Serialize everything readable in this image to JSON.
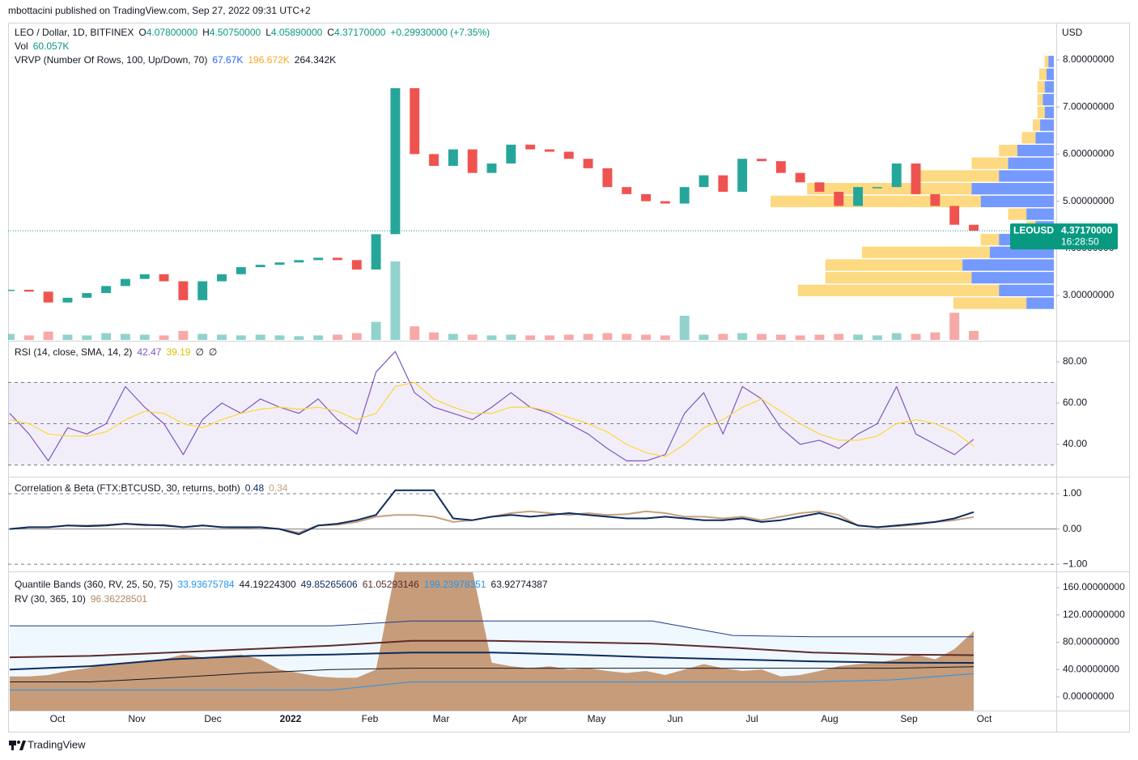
{
  "header": {
    "publisher": "mbottacini published on TradingView.com, Sep 27, 2022 09:31 UTC+2"
  },
  "footer": {
    "brand": "TradingView"
  },
  "x_labels": [
    "Oct",
    "Nov",
    "Dec",
    "2022",
    "Feb",
    "Mar",
    "Apr",
    "May",
    "Jun",
    "Jul",
    "Aug",
    "Sep",
    "Oct"
  ],
  "chart_data": [
    {
      "type": "candlestick",
      "title": "LEO / Dollar, 1D, BITFINEX",
      "ohlc": [
        {
          "label": "O",
          "value": "4.07800000"
        },
        {
          "label": "H",
          "value": "4.50750000"
        },
        {
          "label": "L",
          "value": "4.05890000"
        },
        {
          "label": "C",
          "value": "4.37170000"
        }
      ],
      "change": "+0.29930000 (+7.35%)",
      "currency": "USD",
      "ylim": [
        2.055,
        8.79
      ],
      "yticks": [
        {
          "value": 3,
          "label": "3.00000000"
        },
        {
          "value": 4,
          "label": "4.00000000"
        },
        {
          "value": 5,
          "label": "5.00000000"
        },
        {
          "value": 6,
          "label": "6.00000000"
        },
        {
          "value": 7,
          "label": "7.00000000"
        },
        {
          "value": 8,
          "label": "8.00000000"
        }
      ],
      "series": [
        {
          "name": "LEOUSD",
          "up_color": "#26a69a",
          "down_color": "#ef5350",
          "values": [
            3.12,
            3.08,
            2.85,
            2.95,
            3.05,
            3.2,
            3.35,
            3.45,
            3.3,
            2.9,
            3.3,
            3.45,
            3.6,
            3.65,
            3.7,
            3.75,
            3.8,
            3.75,
            3.55,
            4.3,
            7.4,
            6.0,
            5.75,
            6.1,
            5.6,
            5.8,
            6.2,
            6.1,
            6.05,
            5.9,
            5.7,
            5.3,
            5.15,
            5.0,
            4.95,
            5.3,
            5.55,
            5.2,
            5.9,
            5.85,
            5.6,
            5.4,
            5.2,
            4.9,
            5.3,
            5.3,
            5.8,
            5.15,
            4.9,
            4.5,
            4.3717
          ]
        }
      ],
      "last_price": {
        "value": 4.3717,
        "label": "4.37170000"
      },
      "last_color": "#089981",
      "countdown": "16:28:50",
      "volume": {
        "name": "Vol",
        "value_label": "60.057K",
        "values": [
          40,
          30,
          55,
          35,
          30,
          45,
          40,
          35,
          30,
          60,
          40,
          35,
          30,
          35,
          30,
          25,
          30,
          35,
          45,
          120,
          520,
          90,
          50,
          40,
          35,
          30,
          35,
          30,
          30,
          35,
          40,
          45,
          40,
          35,
          30,
          160,
          35,
          40,
          45,
          40,
          35,
          30,
          35,
          40,
          35,
          30,
          45,
          40,
          50,
          180,
          60.057
        ]
      },
      "profile": {
        "title": "VRVP (Number Of Rows, 100, Up/Down, 70)",
        "legend": [
          {
            "text": "67.67K",
            "color": "#2962ff"
          },
          {
            "text": "196.672K",
            "color": "#f9a825"
          },
          {
            "text": "264.342K",
            "color": "#131722"
          }
        ],
        "up_color": "rgba(41,98,255,0.65)",
        "down_color": "rgba(251,192,45,0.6)",
        "price": [
          2.7,
          2.97,
          3.24,
          3.51,
          3.78,
          4.05,
          4.32,
          4.59,
          4.86,
          5.13,
          5.4,
          5.67,
          5.94,
          6.21,
          6.48,
          6.75,
          7.02,
          7.29,
          7.56,
          7.83
        ],
        "up": [
          30,
          60,
          90,
          100,
          70,
          60,
          20,
          30,
          80,
          90,
          60,
          50,
          40,
          20,
          15,
          10,
          12,
          10,
          8,
          6
        ],
        "down": [
          80,
          220,
          160,
          150,
          140,
          20,
          10,
          20,
          230,
          180,
          90,
          40,
          20,
          15,
          8,
          8,
          6,
          8,
          8,
          4
        ]
      }
    },
    {
      "type": "line",
      "title": "RSI (14, close, SMA, 14, 2)",
      "legend_values": [
        {
          "text": "42.47",
          "color": "#7e57c2"
        },
        {
          "text": "39.19",
          "color": "#e0c200"
        },
        {
          "text": "∅",
          "color": "#131722"
        },
        {
          "text": "∅",
          "color": "#131722"
        }
      ],
      "ylim": [
        24.7,
        89.8
      ],
      "yticks": [
        {
          "value": 40,
          "label": "40.00"
        },
        {
          "value": 60,
          "label": "60.00"
        },
        {
          "value": 80,
          "label": "80.00"
        }
      ],
      "levels": [
        70,
        50,
        30
      ],
      "band": [
        30,
        70
      ],
      "band_color": "rgba(126,87,194,0.1)",
      "series": [
        {
          "name": "RSI",
          "color": "#7e57c2",
          "values": [
            55,
            45,
            32,
            48,
            45,
            50,
            68,
            58,
            50,
            35,
            52,
            60,
            55,
            62,
            58,
            55,
            62,
            52,
            45,
            75,
            85,
            65,
            58,
            55,
            52,
            58,
            65,
            58,
            55,
            50,
            45,
            38,
            32,
            32,
            35,
            55,
            65,
            45,
            68,
            62,
            48,
            40,
            42,
            38,
            45,
            50,
            68,
            45,
            40,
            35,
            42.47
          ]
        },
        {
          "name": "SMA",
          "color": "#fdd835",
          "values": [
            52,
            50,
            45,
            44,
            44,
            46,
            52,
            56,
            55,
            50,
            48,
            52,
            55,
            57,
            58,
            57,
            58,
            56,
            52,
            55,
            68,
            70,
            62,
            58,
            55,
            55,
            58,
            58,
            56,
            53,
            50,
            46,
            40,
            36,
            34,
            40,
            48,
            52,
            58,
            62,
            56,
            50,
            45,
            42,
            42,
            44,
            50,
            52,
            50,
            46,
            39.19
          ]
        }
      ]
    },
    {
      "type": "line",
      "title": "Correlation & Beta (FTX:BTCUSD, 30, returns, both)",
      "legend_values": [
        {
          "text": "0.48",
          "color": "#0d2b5e"
        },
        {
          "text": "0.34",
          "color": "#c4a27f"
        }
      ],
      "ylim": [
        -1.18,
        1.46
      ],
      "yticks": [
        {
          "value": -1,
          "label": "−1.00"
        },
        {
          "value": 0,
          "label": "0.00"
        },
        {
          "value": 1,
          "label": "1.00"
        }
      ],
      "levels": [
        1,
        -1
      ],
      "zero_line": 0,
      "series": [
        {
          "name": "Beta",
          "color": "#c4a27f",
          "width": 2,
          "values": [
            0,
            0.05,
            0.05,
            0.1,
            0.1,
            0.12,
            0.15,
            0.1,
            0.12,
            0.05,
            0.1,
            0.05,
            0.02,
            0.05,
            0.0,
            -0.1,
            0.1,
            0.12,
            0.2,
            0.35,
            0.4,
            0.4,
            0.35,
            0.2,
            0.25,
            0.35,
            0.45,
            0.5,
            0.45,
            0.4,
            0.45,
            0.4,
            0.42,
            0.5,
            0.45,
            0.35,
            0.35,
            0.3,
            0.35,
            0.25,
            0.35,
            0.45,
            0.5,
            0.4,
            0.1,
            0.05,
            0.08,
            0.12,
            0.2,
            0.25,
            0.34
          ]
        },
        {
          "name": "Correlation",
          "color": "#0d2b5e",
          "width": 2,
          "values": [
            0,
            0.05,
            0.05,
            0.1,
            0.08,
            0.1,
            0.15,
            0.12,
            0.1,
            0.05,
            0.1,
            0.05,
            0.05,
            0.05,
            0.0,
            -0.15,
            0.1,
            0.15,
            0.25,
            0.4,
            1.1,
            1.1,
            1.1,
            0.3,
            0.25,
            0.35,
            0.4,
            0.35,
            0.4,
            0.45,
            0.4,
            0.35,
            0.3,
            0.3,
            0.35,
            0.3,
            0.25,
            0.25,
            0.3,
            0.2,
            0.25,
            0.35,
            0.45,
            0.3,
            0.1,
            0.05,
            0.1,
            0.15,
            0.2,
            0.3,
            0.48
          ]
        }
      ]
    },
    {
      "type": "area",
      "title": "Quantile Bands (360, RV, 25, 50, 75)",
      "subtitle": "RV (30, 365, 10)",
      "legend_values": [
        {
          "text": "33.93675784",
          "color": "#2196f3"
        },
        {
          "text": "44.19224300",
          "color": "#131722"
        },
        {
          "text": "49.85265606",
          "color": "#0d2b5e"
        },
        {
          "text": "61.05293146",
          "color": "#5d2b2b"
        },
        {
          "text": "199.23978351",
          "color": "#2196f3"
        },
        {
          "text": "63.92774387",
          "color": "#131722"
        }
      ],
      "rv_value": {
        "text": "96.36228501",
        "color": "#b08968"
      },
      "ylim": [
        -20.1,
        182.5
      ],
      "yticks": [
        {
          "value": 0,
          "label": "0.00000000"
        },
        {
          "value": 40,
          "label": "40.00000000"
        },
        {
          "value": 80,
          "label": "80.00000000"
        },
        {
          "value": 120,
          "label": "120.00000000"
        },
        {
          "value": 160,
          "label": "160.00000000"
        }
      ],
      "area": {
        "name": "RV",
        "color": "#c69c7a",
        "values": [
          30,
          30,
          32,
          38,
          42,
          48,
          50,
          52,
          55,
          62,
          58,
          60,
          62,
          55,
          40,
          35,
          30,
          28,
          28,
          40,
          185,
          185,
          185,
          185,
          185,
          50,
          45,
          42,
          45,
          40,
          42,
          38,
          35,
          38,
          32,
          40,
          48,
          42,
          38,
          40,
          30,
          32,
          38,
          45,
          48,
          50,
          55,
          62,
          55,
          70,
          96.36228501
        ]
      },
      "band_fill": "rgba(33,150,243,0.07)",
      "series": [
        {
          "name": "Upper",
          "color": "#1e3a8a",
          "width": 1,
          "values": [
            104,
            104,
            104,
            104,
            104,
            111,
            111,
            111,
            111,
            90,
            88,
            88,
            88
          ]
        },
        {
          "name": "Lower",
          "color": "#2196f3",
          "width": 1,
          "values": [
            10,
            10,
            10,
            10,
            10,
            22,
            22,
            22,
            22,
            22,
            22,
            25,
            33.94
          ]
        },
        {
          "name": "Q25",
          "color": "#131722",
          "width": 1,
          "values": [
            22,
            22,
            28,
            35,
            40,
            42,
            42,
            42,
            42,
            42,
            42,
            42,
            44.19
          ]
        },
        {
          "name": "Median",
          "color": "#0d2b5e",
          "width": 2,
          "values": [
            40,
            45,
            55,
            60,
            62,
            65,
            65,
            62,
            58,
            55,
            52,
            50,
            49.85
          ]
        },
        {
          "name": "Q75",
          "color": "#5d2b2b",
          "width": 2,
          "values": [
            58,
            60,
            65,
            70,
            75,
            82,
            82,
            80,
            78,
            72,
            65,
            62,
            61.05
          ]
        }
      ]
    }
  ]
}
